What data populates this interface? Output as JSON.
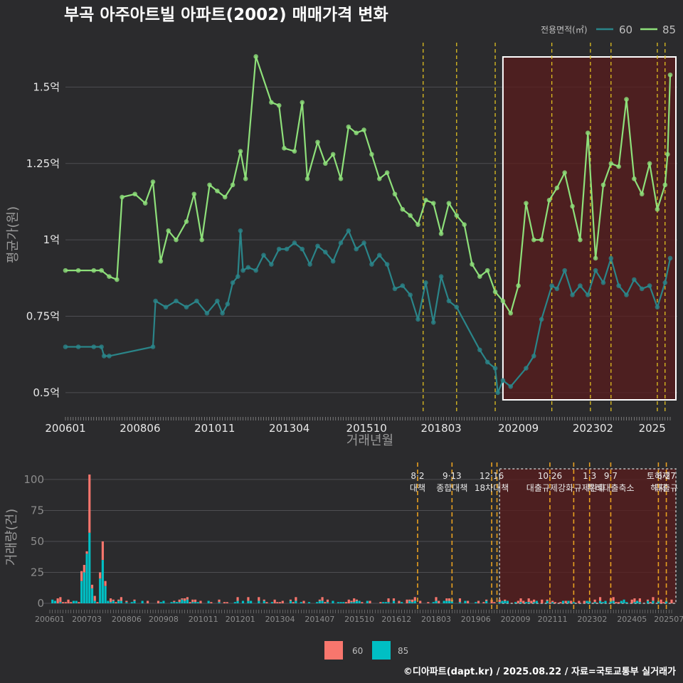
{
  "chart_data": [
    {
      "type": "line",
      "title": "부곡 아주아트빌 아파트(2002) 매매가격 변화",
      "xlabel": "거래년월",
      "ylabel": "평균가(원)",
      "legend": {
        "title": "전용면적(㎡)",
        "position": "top-right"
      },
      "x_range": [
        "2006-01",
        "2025-08"
      ],
      "ylim": [
        0.43,
        1.65
      ],
      "y_unit": "억",
      "y_ticks": [
        {
          "value": 0.5,
          "label": "0.5억"
        },
        {
          "value": 0.75,
          "label": "0.75억"
        },
        {
          "value": 1.0,
          "label": "1억"
        },
        {
          "value": 1.25,
          "label": "1.25억"
        },
        {
          "value": 1.5,
          "label": "1.5억"
        }
      ],
      "x_ticks": [
        "200601",
        "200806",
        "201011",
        "201304",
        "201510",
        "201803",
        "202009",
        "202302",
        "2025"
      ],
      "highlight_range": [
        "2020-03",
        "2025-08"
      ],
      "policy_lines": [
        "2017-08",
        "2018-09",
        "2019-12",
        "2021-10",
        "2023-01",
        "2023-09",
        "2025-03",
        "2025-06"
      ],
      "grid": true,
      "series": [
        {
          "name": "60",
          "color": "#2a8589",
          "points": [
            [
              "2006-01",
              0.65
            ],
            [
              "2006-06",
              0.65
            ],
            [
              "2006-12",
              0.65
            ],
            [
              "2007-03",
              0.65
            ],
            [
              "2007-04",
              0.62
            ],
            [
              "2007-06",
              0.62
            ],
            [
              "2008-11",
              0.65
            ],
            [
              "2008-12",
              0.8
            ],
            [
              "2009-04",
              0.78
            ],
            [
              "2009-08",
              0.8
            ],
            [
              "2009-12",
              0.78
            ],
            [
              "2010-04",
              0.8
            ],
            [
              "2010-08",
              0.76
            ],
            [
              "2010-12",
              0.8
            ],
            [
              "2011-02",
              0.76
            ],
            [
              "2011-04",
              0.79
            ],
            [
              "2011-06",
              0.86
            ],
            [
              "2011-08",
              0.88
            ],
            [
              "2011-09",
              1.03
            ],
            [
              "2011-10",
              0.9
            ],
            [
              "2011-12",
              0.91
            ],
            [
              "2012-03",
              0.9
            ],
            [
              "2012-06",
              0.95
            ],
            [
              "2012-09",
              0.92
            ],
            [
              "2012-12",
              0.97
            ],
            [
              "2013-03",
              0.97
            ],
            [
              "2013-06",
              0.99
            ],
            [
              "2013-09",
              0.97
            ],
            [
              "2013-12",
              0.92
            ],
            [
              "2014-03",
              0.98
            ],
            [
              "2014-06",
              0.96
            ],
            [
              "2014-09",
              0.93
            ],
            [
              "2014-12",
              0.99
            ],
            [
              "2015-03",
              1.03
            ],
            [
              "2015-06",
              0.97
            ],
            [
              "2015-09",
              0.99
            ],
            [
              "2015-12",
              0.92
            ],
            [
              "2016-03",
              0.95
            ],
            [
              "2016-06",
              0.92
            ],
            [
              "2016-09",
              0.84
            ],
            [
              "2016-12",
              0.85
            ],
            [
              "2017-03",
              0.82
            ],
            [
              "2017-06",
              0.74
            ],
            [
              "2017-09",
              0.86
            ],
            [
              "2017-12",
              0.73
            ],
            [
              "2018-03",
              0.88
            ],
            [
              "2018-06",
              0.8
            ],
            [
              "2018-09",
              0.78
            ],
            [
              "2019-06",
              0.64
            ],
            [
              "2019-09",
              0.6
            ],
            [
              "2019-12",
              0.58
            ],
            [
              "2020-01",
              0.5
            ],
            [
              "2020-03",
              0.54
            ],
            [
              "2020-06",
              0.52
            ],
            [
              "2020-12",
              0.58
            ],
            [
              "2021-03",
              0.62
            ],
            [
              "2021-06",
              0.74
            ],
            [
              "2021-10",
              0.85
            ],
            [
              "2021-12",
              0.84
            ],
            [
              "2022-03",
              0.9
            ],
            [
              "2022-06",
              0.82
            ],
            [
              "2022-09",
              0.85
            ],
            [
              "2022-12",
              0.82
            ],
            [
              "2023-03",
              0.9
            ],
            [
              "2023-06",
              0.86
            ],
            [
              "2023-09",
              0.94
            ],
            [
              "2023-12",
              0.85
            ],
            [
              "2024-03",
              0.82
            ],
            [
              "2024-06",
              0.87
            ],
            [
              "2024-09",
              0.84
            ],
            [
              "2024-12",
              0.85
            ],
            [
              "2025-03",
              0.78
            ],
            [
              "2025-06",
              0.86
            ],
            [
              "2025-08",
              0.94
            ]
          ]
        },
        {
          "name": "85",
          "color": "#8ee07a",
          "points": [
            [
              "2006-01",
              0.9
            ],
            [
              "2006-06",
              0.9
            ],
            [
              "2006-12",
              0.9
            ],
            [
              "2007-03",
              0.9
            ],
            [
              "2007-06",
              0.88
            ],
            [
              "2007-09",
              0.87
            ],
            [
              "2007-11",
              1.14
            ],
            [
              "2008-04",
              1.15
            ],
            [
              "2008-08",
              1.12
            ],
            [
              "2008-11",
              1.19
            ],
            [
              "2009-02",
              0.93
            ],
            [
              "2009-05",
              1.03
            ],
            [
              "2009-08",
              1.0
            ],
            [
              "2009-12",
              1.06
            ],
            [
              "2010-03",
              1.15
            ],
            [
              "2010-06",
              1.0
            ],
            [
              "2010-09",
              1.18
            ],
            [
              "2010-12",
              1.16
            ],
            [
              "2011-03",
              1.14
            ],
            [
              "2011-06",
              1.18
            ],
            [
              "2011-09",
              1.29
            ],
            [
              "2011-11",
              1.2
            ],
            [
              "2012-03",
              1.6
            ],
            [
              "2012-09",
              1.45
            ],
            [
              "2012-12",
              1.44
            ],
            [
              "2013-02",
              1.3
            ],
            [
              "2013-06",
              1.29
            ],
            [
              "2013-09",
              1.45
            ],
            [
              "2013-11",
              1.2
            ],
            [
              "2014-03",
              1.32
            ],
            [
              "2014-06",
              1.25
            ],
            [
              "2014-09",
              1.28
            ],
            [
              "2014-12",
              1.2
            ],
            [
              "2015-03",
              1.37
            ],
            [
              "2015-06",
              1.35
            ],
            [
              "2015-09",
              1.36
            ],
            [
              "2015-12",
              1.28
            ],
            [
              "2016-03",
              1.2
            ],
            [
              "2016-06",
              1.22
            ],
            [
              "2016-09",
              1.15
            ],
            [
              "2016-12",
              1.1
            ],
            [
              "2017-03",
              1.08
            ],
            [
              "2017-06",
              1.05
            ],
            [
              "2017-09",
              1.13
            ],
            [
              "2017-12",
              1.12
            ],
            [
              "2018-03",
              1.02
            ],
            [
              "2018-06",
              1.12
            ],
            [
              "2018-09",
              1.08
            ],
            [
              "2018-12",
              1.05
            ],
            [
              "2019-03",
              0.92
            ],
            [
              "2019-06",
              0.88
            ],
            [
              "2019-09",
              0.9
            ],
            [
              "2019-12",
              0.83
            ],
            [
              "2020-03",
              0.8
            ],
            [
              "2020-06",
              0.76
            ],
            [
              "2020-09",
              0.85
            ],
            [
              "2020-12",
              1.12
            ],
            [
              "2021-03",
              1.0
            ],
            [
              "2021-06",
              1.0
            ],
            [
              "2021-09",
              1.13
            ],
            [
              "2021-12",
              1.17
            ],
            [
              "2022-03",
              1.22
            ],
            [
              "2022-06",
              1.11
            ],
            [
              "2022-09",
              1.0
            ],
            [
              "2022-12",
              1.35
            ],
            [
              "2023-03",
              0.94
            ],
            [
              "2023-06",
              1.18
            ],
            [
              "2023-09",
              1.25
            ],
            [
              "2023-12",
              1.24
            ],
            [
              "2024-03",
              1.46
            ],
            [
              "2024-06",
              1.2
            ],
            [
              "2024-09",
              1.15
            ],
            [
              "2024-12",
              1.25
            ],
            [
              "2025-03",
              1.1
            ],
            [
              "2025-06",
              1.18
            ],
            [
              "2025-07",
              1.28
            ],
            [
              "2025-08",
              1.54
            ]
          ]
        }
      ]
    },
    {
      "type": "bar",
      "ylabel": "거래량(건)",
      "ylim": [
        0,
        108
      ],
      "y_ticks": [
        0,
        25,
        50,
        75,
        100
      ],
      "x_ticks": [
        "200601",
        "200703",
        "200806",
        "200908",
        "201011",
        "201201",
        "201304",
        "201407",
        "201510",
        "201612",
        "201803",
        "201906",
        "202009",
        "202111",
        "202302",
        "202405",
        "202507"
      ],
      "highlight_range": [
        "2020-03",
        "2025-08"
      ],
      "policy_lines": [
        {
          "date": "2017-08",
          "label": "8·2 대책"
        },
        {
          "date": "2018-09",
          "label": "9·13 종합대책"
        },
        {
          "date": "2019-12",
          "label": "12·16 18차대책"
        },
        {
          "date": "2020-02",
          "label": ""
        },
        {
          "date": "2021-10",
          "label": "10·26 대출규제강화"
        },
        {
          "date": "2022-07",
          "label": ""
        },
        {
          "date": "2023-01",
          "label": "1·3 규제완화"
        },
        {
          "date": "2023-09",
          "label": "9·7 특례대출축소"
        },
        {
          "date": "2025-03",
          "label": "토허제 해지"
        },
        {
          "date": "2025-06",
          "label": "6·27 대출규"
        }
      ],
      "series": [
        {
          "name": "60",
          "color": "#f8766d"
        },
        {
          "name": "85",
          "color": "#00bfc4"
        }
      ],
      "spikes": [
        {
          "month": "2007-01",
          "v60": 8,
          "v85": 18
        },
        {
          "month": "2007-02",
          "v60": 6,
          "v85": 25
        },
        {
          "month": "2007-03",
          "v60": 2,
          "v85": 40
        },
        {
          "month": "2007-04",
          "v60": 47,
          "v85": 57
        },
        {
          "month": "2007-05",
          "v60": 3,
          "v85": 12
        },
        {
          "month": "2007-08",
          "v60": 5,
          "v85": 20
        },
        {
          "month": "2007-09",
          "v60": 15,
          "v85": 35
        },
        {
          "month": "2007-10",
          "v60": 4,
          "v85": 14
        }
      ]
    }
  ],
  "caption": "©디아파트(dapt.kr) / 2025.08.22 / 자료=국토교통부 실거래가"
}
